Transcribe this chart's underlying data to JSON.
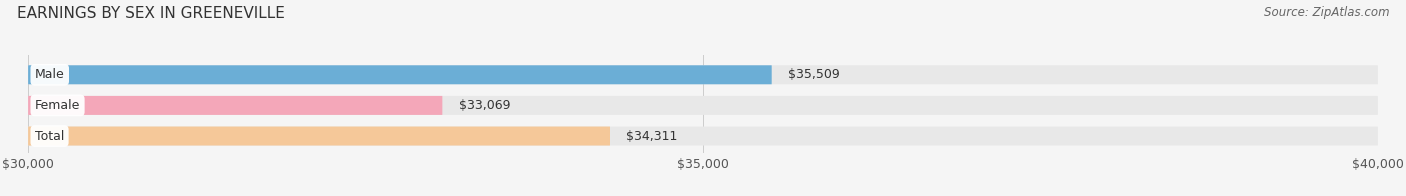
{
  "title": "EARNINGS BY SEX IN GREENEVILLE",
  "source": "Source: ZipAtlas.com",
  "categories": [
    "Male",
    "Female",
    "Total"
  ],
  "values": [
    35509,
    33069,
    34311
  ],
  "bar_colors": [
    "#6baed6",
    "#f4a7b9",
    "#f5c899"
  ],
  "bar_bg_color": "#e8e8e8",
  "xmin": 30000,
  "xmax": 40000,
  "xticks": [
    30000,
    35000,
    40000
  ],
  "xtick_labels": [
    "$30,000",
    "$35,000",
    "$40,000"
  ],
  "title_fontsize": 11,
  "source_fontsize": 8.5,
  "tick_fontsize": 9,
  "value_fontsize": 9,
  "label_fontsize": 9,
  "background_color": "#f5f5f5"
}
